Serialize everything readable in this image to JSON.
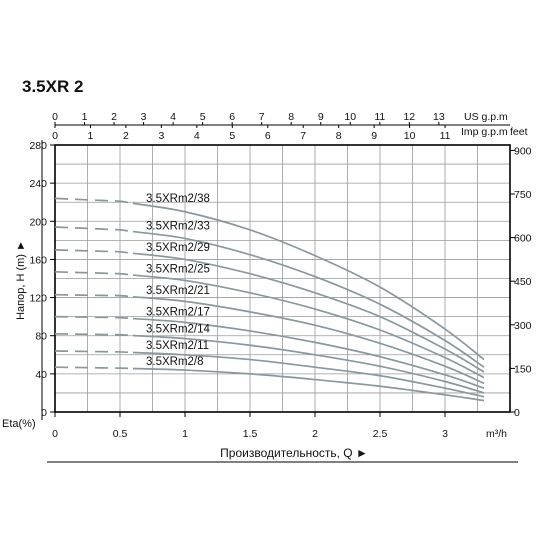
{
  "chart_data": {
    "type": "line",
    "title": "3.5XR 2",
    "xlabel": "Производительность, Q ►",
    "ylabel": "Напор, H (m) ►",
    "eta_label": "Eta(%)",
    "x_unit": "m³/h",
    "xlim": [
      0,
      3.5
    ],
    "ylim": [
      0,
      280
    ],
    "x_ticks": [
      "0",
      "0.5",
      "1",
      "1.5",
      "2",
      "2.5",
      "3"
    ],
    "x_tick_values": [
      0,
      0.5,
      1,
      1.5,
      2,
      2.5,
      3
    ],
    "y_ticks": [
      "0",
      "40",
      "80",
      "120",
      "160",
      "200",
      "240",
      "280"
    ],
    "y_tick_values": [
      0,
      40,
      80,
      120,
      160,
      200,
      240,
      280
    ],
    "y_right": {
      "unit": "feet",
      "ticks": [
        "0",
        "150",
        "300",
        "450",
        "600",
        "750",
        "900"
      ],
      "values": [
        0,
        150,
        300,
        450,
        600,
        750,
        900
      ]
    },
    "top_axes": [
      {
        "unit": "US g.p.m",
        "ticks": [
          "0",
          "1",
          "2",
          "3",
          "4",
          "5",
          "6",
          "7",
          "8",
          "9",
          "10",
          "11",
          "12",
          "13"
        ],
        "values": [
          0,
          1,
          2,
          3,
          4,
          5,
          6,
          7,
          8,
          9,
          10,
          11,
          12,
          13
        ]
      },
      {
        "unit": "Imp g.p.m",
        "ticks": [
          "0",
          "1",
          "2",
          "3",
          "4",
          "5",
          "6",
          "7",
          "8",
          "9",
          "10",
          "11"
        ],
        "values": [
          0,
          1,
          2,
          3,
          4,
          5,
          6,
          7,
          8,
          9,
          10,
          11
        ]
      }
    ],
    "grid": true,
    "series": [
      {
        "name": "3.5XRm2/38",
        "x": [
          0,
          0.5,
          1,
          1.5,
          2,
          2.5,
          3,
          3.3
        ],
        "y": [
          224,
          221,
          210,
          191,
          164,
          131,
          87,
          55
        ]
      },
      {
        "name": "3.5XRm2/33",
        "x": [
          0,
          0.5,
          1,
          1.5,
          2,
          2.5,
          3,
          3.3
        ],
        "y": [
          194,
          191,
          182,
          165,
          142,
          113,
          75,
          47
        ]
      },
      {
        "name": "3.5XRm2/29",
        "x": [
          0,
          0.5,
          1,
          1.5,
          2,
          2.5,
          3,
          3.3
        ],
        "y": [
          170,
          168,
          160,
          145,
          125,
          100,
          66,
          42
        ]
      },
      {
        "name": "3.5XRm2/25",
        "x": [
          0,
          0.5,
          1,
          1.5,
          2,
          2.5,
          3,
          3.3
        ],
        "y": [
          147,
          145,
          138,
          125,
          108,
          86,
          57,
          36
        ]
      },
      {
        "name": "3.5XRm2/21",
        "x": [
          0,
          0.5,
          1,
          1.5,
          2,
          2.5,
          3,
          3.3
        ],
        "y": [
          123,
          122,
          116,
          105,
          91,
          72,
          48,
          30
        ]
      },
      {
        "name": "3.5XRm2/17",
        "x": [
          0,
          0.5,
          1,
          1.5,
          2,
          2.5,
          3,
          3.3
        ],
        "y": [
          100,
          99,
          94,
          85,
          73,
          58,
          39,
          25
        ]
      },
      {
        "name": "3.5XRm2/14",
        "x": [
          0,
          0.5,
          1,
          1.5,
          2,
          2.5,
          3,
          3.3
        ],
        "y": [
          82,
          81,
          77,
          70,
          60,
          48,
          32,
          20
        ]
      },
      {
        "name": "3.5XRm2/11",
        "x": [
          0,
          0.5,
          1,
          1.5,
          2,
          2.5,
          3,
          3.3
        ],
        "y": [
          64,
          63,
          60,
          55,
          47,
          38,
          25,
          16
        ]
      },
      {
        "name": "3.5XRm2/8",
        "x": [
          0,
          0.5,
          1,
          1.5,
          2,
          2.5,
          3,
          3.3
        ],
        "y": [
          47,
          46,
          44,
          40,
          34,
          27,
          18,
          12
        ]
      }
    ],
    "colors": {
      "curve": "#8a979c",
      "grid": "#9a9a9a",
      "axis": "#000000"
    }
  }
}
